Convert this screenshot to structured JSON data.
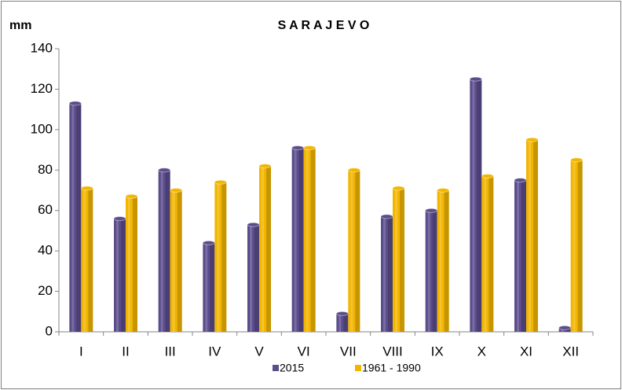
{
  "chart_data": {
    "type": "bar",
    "title": "S A R A J E V O",
    "y_label": "mm",
    "categories": [
      "I",
      "II",
      "III",
      "IV",
      "V",
      "VI",
      "VII",
      "VIII",
      "IX",
      "X",
      "XI",
      "XII"
    ],
    "series": [
      {
        "name": "2015",
        "color": "#5b4c8c",
        "values": [
          113,
          56,
          80,
          44,
          53,
          91,
          9,
          57,
          60,
          125,
          75,
          2
        ]
      },
      {
        "name": "1961 - 1990",
        "color": "#f2b600",
        "values": [
          71,
          67,
          70,
          74,
          82,
          91,
          80,
          71,
          70,
          77,
          95,
          85
        ]
      }
    ],
    "ylim": [
      0,
      140
    ],
    "yticks": [
      0,
      20,
      40,
      60,
      80,
      100,
      120,
      140
    ],
    "grid": false,
    "legend": "bottom"
  }
}
